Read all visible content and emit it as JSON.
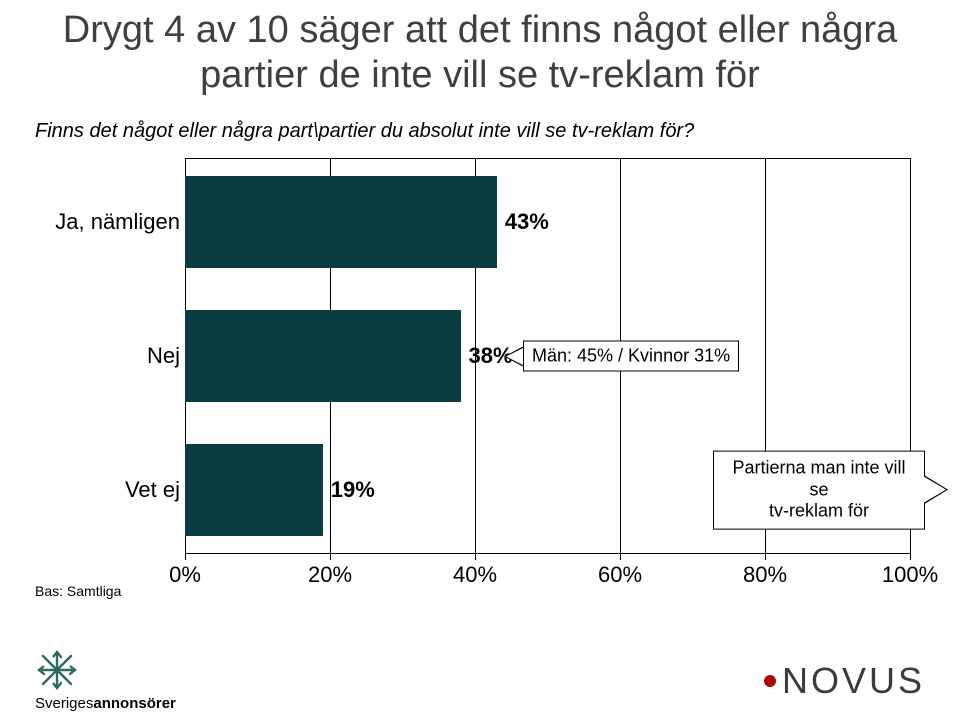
{
  "title": "Drygt 4 av 10 säger att det finns något eller några partier de inte vill se tv-reklam för",
  "subtitle": "Finns det något eller några part\\partier du absolut inte vill se tv-reklam för?",
  "title_fontsize": 38,
  "subtitle_fontsize": 20,
  "title_color": "#3f3f3f",
  "chart": {
    "type": "bar-horizontal",
    "background_color": "#ffffff",
    "axis_color": "#000000",
    "xlim": [
      0,
      100
    ],
    "xtick_step": 20,
    "x_ticks": [
      {
        "value": 0,
        "label": "0%"
      },
      {
        "value": 20,
        "label": "20%"
      },
      {
        "value": 40,
        "label": "40%"
      },
      {
        "value": 60,
        "label": "60%"
      },
      {
        "value": 80,
        "label": "80%"
      },
      {
        "value": 100,
        "label": "100%"
      }
    ],
    "tick_fontsize": 22,
    "label_fontsize": 22,
    "value_fontsize": 22,
    "bar_color": "#0a3d40",
    "bars": [
      {
        "key": "ja",
        "label": "Ja, nämligen",
        "value": 43,
        "display": "43%"
      },
      {
        "key": "nej",
        "label": "Nej",
        "value": 38,
        "display": "38%"
      },
      {
        "key": "vetej",
        "label": "Vet ej",
        "value": 19,
        "display": "19%"
      }
    ],
    "callouts": {
      "nej": {
        "text": "Män: 45% / Kvinnor 31%",
        "fontsize": 18
      },
      "vetej": {
        "text_line1": "Partierna man inte vill se",
        "text_line2": "tv-reklam för",
        "fontsize": 18
      }
    }
  },
  "base_label": "Bas: Samtliga",
  "footer": {
    "left_brand": "Sverigesannonsörer",
    "left_icon_color": "#2d6a60",
    "right_brand": "NOVUS",
    "right_brand_color": "#3b3b3b",
    "right_dot_color": "#b00000"
  }
}
